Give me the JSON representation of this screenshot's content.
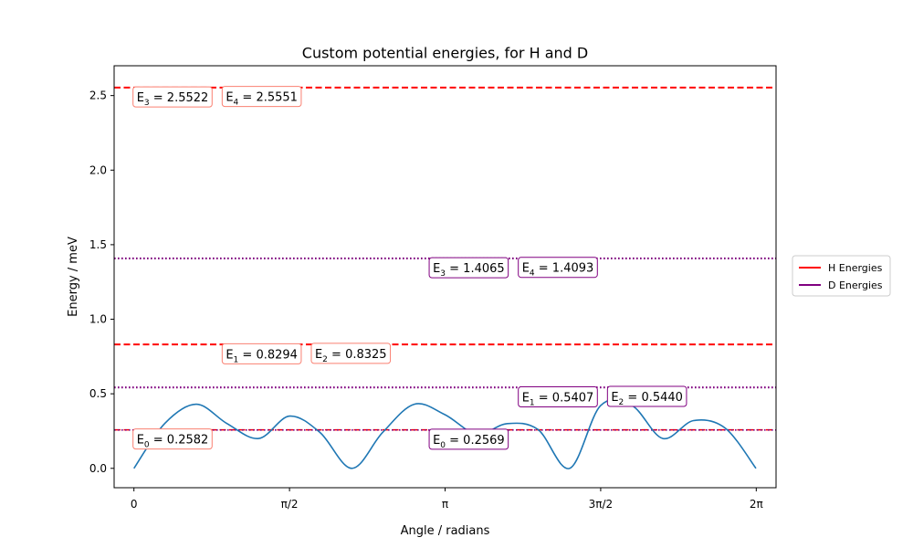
{
  "chart_data": {
    "type": "line",
    "title": "Custom potential energies, for H and D",
    "xlabel": "Angle / radians",
    "ylabel": "Energy / meV",
    "xlim": [
      -0.2,
      6.483
    ],
    "ylim": [
      -0.13,
      2.7
    ],
    "grid": false,
    "legend_position": "center-right-outside",
    "x_ticks": [
      {
        "value": 0,
        "label": "0"
      },
      {
        "value": 1.5708,
        "label": "π/2"
      },
      {
        "value": 3.1416,
        "label": "π"
      },
      {
        "value": 4.7124,
        "label": "3π/2"
      },
      {
        "value": 6.2832,
        "label": "2π"
      }
    ],
    "y_ticks": [
      {
        "value": 0.0,
        "label": "0.0"
      },
      {
        "value": 0.5,
        "label": "0.5"
      },
      {
        "value": 1.0,
        "label": "1.0"
      },
      {
        "value": 1.5,
        "label": "1.5"
      },
      {
        "value": 2.0,
        "label": "2.0"
      },
      {
        "value": 2.5,
        "label": "2.5"
      }
    ],
    "potential": {
      "color": "#1f77b4",
      "x": [
        0.0,
        0.31,
        0.63,
        0.94,
        1.26,
        1.57,
        1.88,
        2.2,
        2.51,
        2.83,
        3.14,
        3.46,
        3.77,
        4.08,
        4.4,
        4.71,
        5.03,
        5.34,
        5.65,
        5.97,
        6.28
      ],
      "y": [
        0.0,
        0.3,
        0.43,
        0.3,
        0.2,
        0.35,
        0.24,
        0.0,
        0.24,
        0.43,
        0.36,
        0.23,
        0.3,
        0.26,
        0.0,
        0.42,
        0.42,
        0.2,
        0.32,
        0.27,
        0.0
      ]
    },
    "series": [
      {
        "name": "H Energies",
        "color": "#ff0000",
        "box_color": "#fa8072",
        "linestyle": "dashed",
        "levels": [
          {
            "value": 0.2582,
            "sub": "0",
            "text": " = 0.2582",
            "x_anchor": 0
          },
          {
            "value": 0.8294,
            "sub": "1",
            "text": " = 0.8294",
            "x_anchor": 0.9
          },
          {
            "value": 0.8325,
            "sub": "2",
            "text": " = 0.8325",
            "x_anchor": 1.8
          },
          {
            "value": 2.5522,
            "sub": "3",
            "text": " = 2.5522",
            "x_anchor": 0
          },
          {
            "value": 2.5551,
            "sub": "4",
            "text": " = 2.5551",
            "x_anchor": 0.9
          }
        ]
      },
      {
        "name": "D Energies",
        "color": "#800080",
        "box_color": "#800080",
        "linestyle": "dotted",
        "levels": [
          {
            "value": 0.2569,
            "sub": "0",
            "text": " = 0.2569",
            "x_anchor": 2.99
          },
          {
            "value": 0.5407,
            "sub": "1",
            "text": " = 0.5407",
            "x_anchor": 3.89
          },
          {
            "value": 0.544,
            "sub": "2",
            "text": " = 0.5440",
            "x_anchor": 4.79
          },
          {
            "value": 1.4065,
            "sub": "3",
            "text": " = 1.4065",
            "x_anchor": 2.99
          },
          {
            "value": 1.4093,
            "sub": "4",
            "text": " = 1.4093",
            "x_anchor": 3.89
          }
        ]
      }
    ]
  }
}
